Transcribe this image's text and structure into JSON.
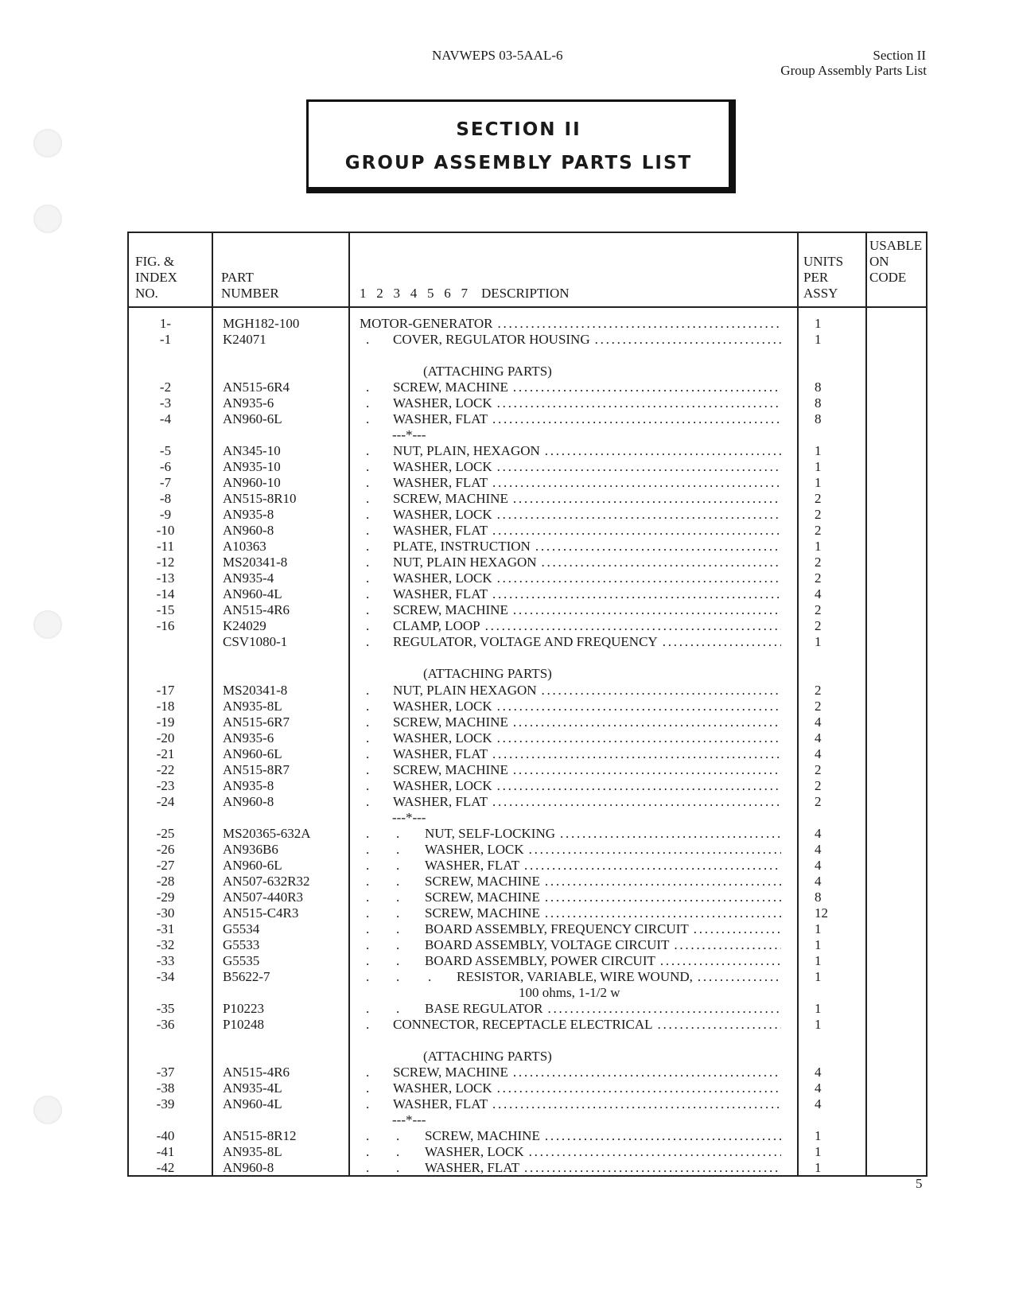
{
  "header": {
    "doc_number": "NAVWEPS 03-5AAL-6",
    "section": "Section II",
    "section_title": "Group Assembly Parts List"
  },
  "title_box": {
    "line1": "SECTION II",
    "line2": "GROUP ASSEMBLY PARTS LIST"
  },
  "table": {
    "columns": {
      "index": [
        "FIG. &",
        "INDEX",
        "NO."
      ],
      "part": [
        "PART",
        "NUMBER"
      ],
      "desc": "1   2   3   4   5   6   7    DESCRIPTION",
      "units": [
        "UNITS",
        "PER",
        "ASSY"
      ],
      "usable": [
        "USABLE",
        "ON",
        "CODE"
      ]
    },
    "rows": [
      {
        "i": "1-",
        "p": "MGH182-100",
        "l": 0,
        "d": "MOTOR-GENERATOR",
        "q": "1"
      },
      {
        "i": "-1",
        "p": "K24071",
        "l": 1,
        "d": "COVER, REGULATOR HOUSING",
        "q": "1"
      },
      {
        "t": "blank"
      },
      {
        "t": "note",
        "d": "(ATTACHING PARTS)"
      },
      {
        "i": "-2",
        "p": "AN515-6R4",
        "l": 1,
        "d": "SCREW, MACHINE",
        "q": "8"
      },
      {
        "i": "-3",
        "p": "AN935-6",
        "l": 1,
        "d": "WASHER, LOCK",
        "q": "8"
      },
      {
        "i": "-4",
        "p": "AN960-6L",
        "l": 1,
        "d": "WASHER, FLAT",
        "q": "8"
      },
      {
        "t": "sep",
        "d": "---*---"
      },
      {
        "i": "-5",
        "p": "AN345-10",
        "l": 1,
        "d": "NUT, PLAIN, HEXAGON",
        "q": "1"
      },
      {
        "i": "-6",
        "p": "AN935-10",
        "l": 1,
        "d": "WASHER, LOCK",
        "q": "1"
      },
      {
        "i": "-7",
        "p": "AN960-10",
        "l": 1,
        "d": "WASHER, FLAT",
        "q": "1"
      },
      {
        "i": "-8",
        "p": "AN515-8R10",
        "l": 1,
        "d": "SCREW, MACHINE",
        "q": "2"
      },
      {
        "i": "-9",
        "p": "AN935-8",
        "l": 1,
        "d": "WASHER, LOCK",
        "q": "2"
      },
      {
        "i": "-10",
        "p": "AN960-8",
        "l": 1,
        "d": "WASHER, FLAT",
        "q": "2"
      },
      {
        "i": "-11",
        "p": "A10363",
        "l": 1,
        "d": "PLATE, INSTRUCTION",
        "q": "1"
      },
      {
        "i": "-12",
        "p": "MS20341-8",
        "l": 1,
        "d": "NUT, PLAIN HEXAGON",
        "q": "2"
      },
      {
        "i": "-13",
        "p": "AN935-4",
        "l": 1,
        "d": "WASHER, LOCK",
        "q": "2"
      },
      {
        "i": "-14",
        "p": "AN960-4L",
        "l": 1,
        "d": "WASHER, FLAT",
        "q": "4"
      },
      {
        "i": "-15",
        "p": "AN515-4R6",
        "l": 1,
        "d": "SCREW, MACHINE",
        "q": "2"
      },
      {
        "i": "-16",
        "p": "K24029",
        "l": 1,
        "d": "CLAMP, LOOP",
        "q": "2"
      },
      {
        "i": "",
        "p": "CSV1080-1",
        "l": 1,
        "d": "REGULATOR, VOLTAGE AND FREQUENCY",
        "q": "1"
      },
      {
        "t": "blank"
      },
      {
        "t": "note",
        "d": "(ATTACHING PARTS)"
      },
      {
        "i": "-17",
        "p": "MS20341-8",
        "l": 1,
        "d": "NUT, PLAIN HEXAGON",
        "q": "2"
      },
      {
        "i": "-18",
        "p": "AN935-8L",
        "l": 1,
        "d": "WASHER, LOCK",
        "q": "2"
      },
      {
        "i": "-19",
        "p": "AN515-6R7",
        "l": 1,
        "d": "SCREW, MACHINE",
        "q": "4"
      },
      {
        "i": "-20",
        "p": "AN935-6",
        "l": 1,
        "d": "WASHER, LOCK",
        "q": "4"
      },
      {
        "i": "-21",
        "p": "AN960-6L",
        "l": 1,
        "d": "WASHER, FLAT",
        "q": "4"
      },
      {
        "i": "-22",
        "p": "AN515-8R7",
        "l": 1,
        "d": "SCREW, MACHINE",
        "q": "2"
      },
      {
        "i": "-23",
        "p": "AN935-8",
        "l": 1,
        "d": "WASHER, LOCK",
        "q": "2"
      },
      {
        "i": "-24",
        "p": "AN960-8",
        "l": 1,
        "d": "WASHER, FLAT",
        "q": "2"
      },
      {
        "t": "sep",
        "d": "---*---"
      },
      {
        "i": "-25",
        "p": "MS20365-632A",
        "l": 2,
        "d": "NUT, SELF-LOCKING",
        "q": "4"
      },
      {
        "i": "-26",
        "p": "AN936B6",
        "l": 2,
        "d": "WASHER, LOCK",
        "q": "4"
      },
      {
        "i": "-27",
        "p": "AN960-6L",
        "l": 2,
        "d": "WASHER, FLAT",
        "q": "4"
      },
      {
        "i": "-28",
        "p": "AN507-632R32",
        "l": 2,
        "d": "SCREW, MACHINE",
        "q": "4"
      },
      {
        "i": "-29",
        "p": "AN507-440R3",
        "l": 2,
        "d": "SCREW, MACHINE",
        "q": "8"
      },
      {
        "i": "-30",
        "p": "AN515-C4R3",
        "l": 2,
        "d": "SCREW, MACHINE",
        "q": "12"
      },
      {
        "i": "-31",
        "p": "G5534",
        "l": 2,
        "d": "BOARD ASSEMBLY, FREQUENCY CIRCUIT",
        "q": "1"
      },
      {
        "i": "-32",
        "p": "G5533",
        "l": 2,
        "d": "BOARD ASSEMBLY, VOLTAGE CIRCUIT",
        "q": "1"
      },
      {
        "i": "-33",
        "p": "G5535",
        "l": 2,
        "d": "BOARD ASSEMBLY, POWER CIRCUIT",
        "q": "1"
      },
      {
        "i": "-34",
        "p": "B5622-7",
        "l": 3,
        "d": "RESISTOR, VARIABLE, WIRE WOUND,",
        "q": "1"
      },
      {
        "t": "cont",
        "d": "100 ohms, 1-1/2 w"
      },
      {
        "i": "-35",
        "p": "P10223",
        "l": 2,
        "d": "BASE REGULATOR",
        "q": "1"
      },
      {
        "i": "-36",
        "p": "P10248",
        "l": 1,
        "d": "CONNECTOR, RECEPTACLE ELECTRICAL",
        "q": "1"
      },
      {
        "t": "blank"
      },
      {
        "t": "note",
        "d": "(ATTACHING PARTS)"
      },
      {
        "i": "-37",
        "p": "AN515-4R6",
        "l": 1,
        "d": "SCREW, MACHINE",
        "q": "4"
      },
      {
        "i": "-38",
        "p": "AN935-4L",
        "l": 1,
        "d": "WASHER, LOCK",
        "q": "4"
      },
      {
        "i": "-39",
        "p": "AN960-4L",
        "l": 1,
        "d": "WASHER, FLAT",
        "q": "4"
      },
      {
        "t": "sep",
        "d": "---*---"
      },
      {
        "i": "-40",
        "p": "AN515-8R12",
        "l": 2,
        "d": "SCREW, MACHINE",
        "q": "1"
      },
      {
        "i": "-41",
        "p": "AN935-8L",
        "l": 2,
        "d": "WASHER, LOCK",
        "q": "1"
      },
      {
        "i": "-42",
        "p": "AN960-8",
        "l": 2,
        "d": "WASHER, FLAT",
        "q": "1"
      }
    ]
  },
  "page_number": "5"
}
